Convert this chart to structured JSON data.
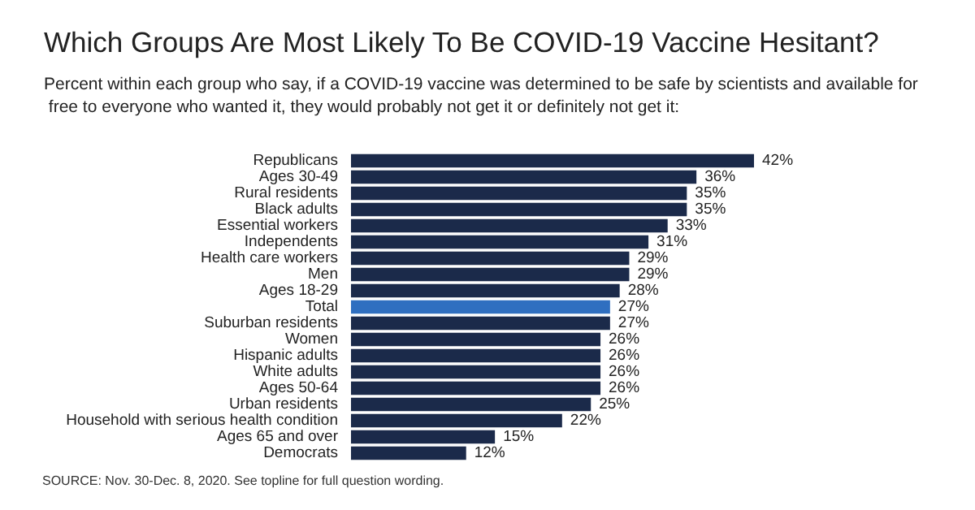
{
  "chart_data": {
    "type": "bar",
    "orientation": "horizontal",
    "title": "Which Groups Are Most Likely To Be COVID-19 Vaccine Hesitant?",
    "subtitle": "Percent within each group who say, if a COVID-19 vaccine was determined to be safe by scientists and available for free to everyone who wanted it, they would probably not get it or definitely not get it:",
    "categories": [
      "Republicans",
      "Ages 30-49",
      "Rural residents",
      "Black adults",
      "Essential workers",
      "Independents",
      "Health care workers",
      "Men",
      "Ages 18-29",
      "Total",
      "Suburban residents",
      "Women",
      "Hispanic adults",
      "White adults",
      "Ages 50-64",
      "Urban residents",
      "Household with serious health condition",
      "Ages 65 and over",
      "Democrats"
    ],
    "values": [
      42,
      36,
      35,
      35,
      33,
      31,
      29,
      29,
      28,
      27,
      27,
      26,
      26,
      26,
      26,
      25,
      22,
      15,
      12
    ],
    "value_labels": [
      "42%",
      "36%",
      "35%",
      "35%",
      "33%",
      "31%",
      "29%",
      "29%",
      "28%",
      "27%",
      "27%",
      "26%",
      "26%",
      "26%",
      "26%",
      "25%",
      "22%",
      "15%",
      "12%"
    ],
    "colors": [
      "#1b2a4a",
      "#1b2a4a",
      "#1b2a4a",
      "#1b2a4a",
      "#1b2a4a",
      "#1b2a4a",
      "#1b2a4a",
      "#1b2a4a",
      "#1b2a4a",
      "#2f6fc0",
      "#1b2a4a",
      "#1b2a4a",
      "#1b2a4a",
      "#1b2a4a",
      "#1b2a4a",
      "#1b2a4a",
      "#1b2a4a",
      "#1b2a4a",
      "#1b2a4a"
    ],
    "annotations": [
      "SOURCE: Nov. 30-Dec. 8, 2020. See topline for full question wording."
    ]
  }
}
